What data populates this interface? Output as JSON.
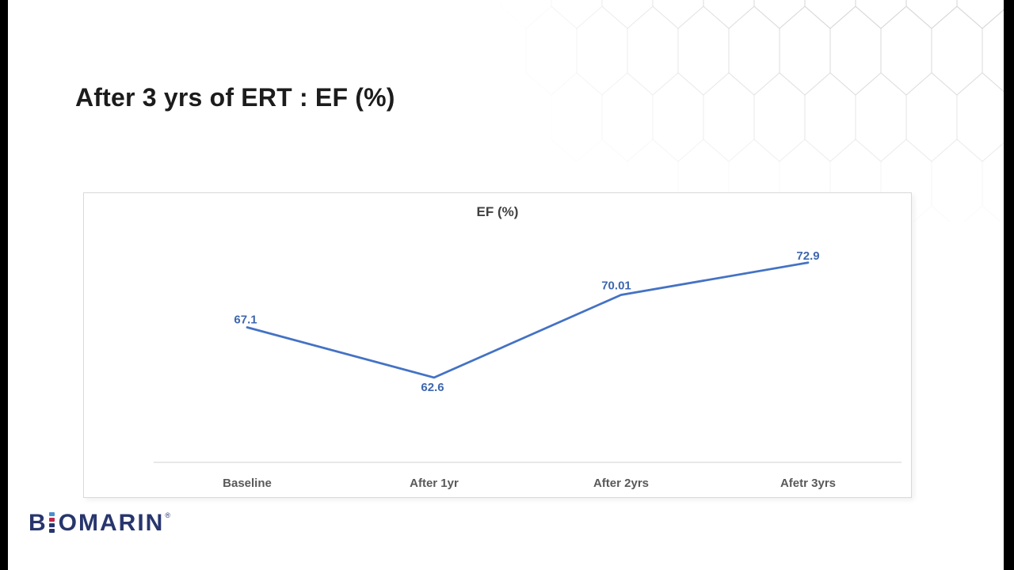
{
  "slide": {
    "title": "After 3 yrs of ERT : EF (%)",
    "background": "#ffffff",
    "edge_bar_color": "#000000"
  },
  "logo": {
    "prefix": "B",
    "suffix": "OMARIN",
    "trademark": "®",
    "text_color": "#28366d",
    "i_segment_colors": [
      "#4a8fd0",
      "#c0284b",
      "#28366d",
      "#28366d"
    ]
  },
  "chart_data": {
    "type": "line",
    "title": "EF (%)",
    "categories": [
      "Baseline",
      "After 1yr",
      "After 2yrs",
      "Afetr 3yrs"
    ],
    "series": [
      {
        "name": "EF (%)",
        "values": [
          67.1,
          62.6,
          70.01,
          72.9
        ]
      }
    ],
    "data_labels": [
      "67.1",
      "62.6",
      "70.01",
      "72.9"
    ],
    "ylim": [
      55,
      77
    ],
    "grid": false,
    "legend": "none",
    "colors": {
      "line": "#4472c4",
      "data_label": "#3f66ae",
      "axis_line": "#d9d9d9",
      "tick_label": "#595959",
      "title": "#404040"
    }
  }
}
